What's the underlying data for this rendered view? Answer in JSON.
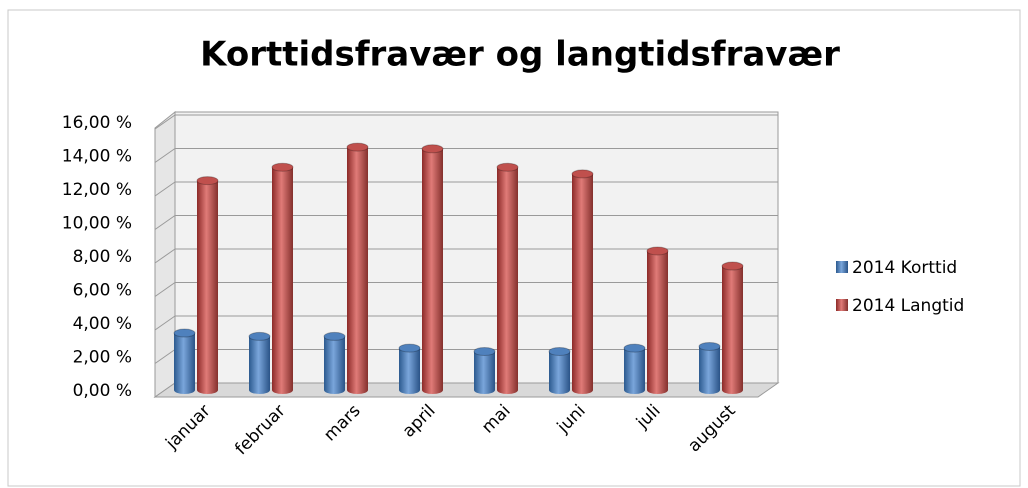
{
  "chart_data": {
    "type": "bar3d",
    "title": "Korttidsfravær og langtidsfravær",
    "categories": [
      "januar",
      "februar",
      "mars",
      "april",
      "mai",
      "juni",
      "juli",
      "august"
    ],
    "series": [
      {
        "name": "2014 Korttid",
        "color": "#4f81bd",
        "values": [
          3.4,
          3.2,
          3.2,
          2.5,
          2.3,
          2.3,
          2.5,
          2.6
        ]
      },
      {
        "name": "2014 Langtid",
        "color": "#c0504d",
        "values": [
          12.5,
          13.3,
          14.5,
          14.4,
          13.3,
          12.9,
          8.3,
          7.4
        ]
      }
    ],
    "ylim": [
      0,
      16
    ],
    "yticks": [
      {
        "value": 0,
        "label": "0,00 %"
      },
      {
        "value": 2,
        "label": "2,00 %"
      },
      {
        "value": 4,
        "label": "4,00 %"
      },
      {
        "value": 6,
        "label": "6,00 %"
      },
      {
        "value": 8,
        "label": "8,00 %"
      },
      {
        "value": 10,
        "label": "10,00 %"
      },
      {
        "value": 12,
        "label": "12,00 %"
      },
      {
        "value": 14,
        "label": "14,00 %"
      },
      {
        "value": 16,
        "label": "16,00 %"
      }
    ],
    "grid": true
  }
}
